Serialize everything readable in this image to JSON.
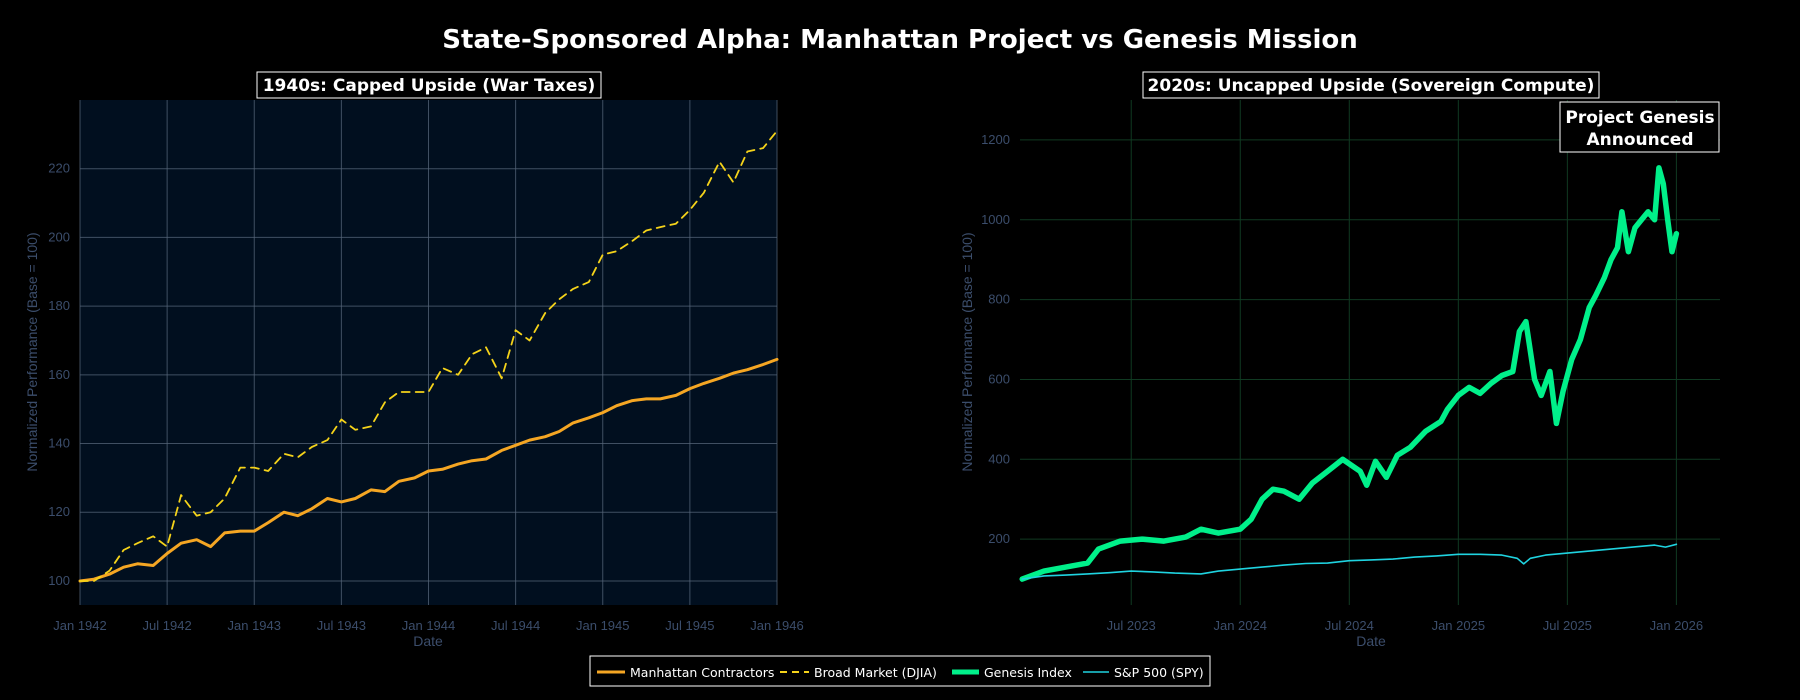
{
  "title": "State-Sponsored Alpha: Manhattan Project vs Genesis Mission",
  "colors": {
    "manhattan": "#f5a623",
    "djia": "#f5d31a",
    "genesis": "#00f08a",
    "spy": "#1fd3e0",
    "left_bg": "#010f1f",
    "tick": "#3b4d6b"
  },
  "chart_data": [
    {
      "type": "line",
      "title": "1940s: Capped Upside (War Taxes)",
      "xlabel": "Date",
      "ylabel": "Normalized Performance (Base = 100)",
      "x_range": [
        1942.0,
        1946.0
      ],
      "ylim": [
        93,
        240
      ],
      "x_ticks": [
        {
          "x": 1942.0,
          "label": "Jan 1942"
        },
        {
          "x": 1942.5,
          "label": "Jul 1942"
        },
        {
          "x": 1943.0,
          "label": "Jan 1943"
        },
        {
          "x": 1943.5,
          "label": "Jul 1943"
        },
        {
          "x": 1944.0,
          "label": "Jan 1944"
        },
        {
          "x": 1944.5,
          "label": "Jul 1944"
        },
        {
          "x": 1945.0,
          "label": "Jan 1945"
        },
        {
          "x": 1945.5,
          "label": "Jul 1945"
        },
        {
          "x": 1946.0,
          "label": "Jan 1946"
        }
      ],
      "y_ticks": [
        100,
        120,
        140,
        160,
        180,
        200,
        220
      ],
      "series": [
        {
          "name": "Manhattan Contractors",
          "style": "solid",
          "points": [
            [
              1942.0,
              100
            ],
            [
              1942.08,
              100.5
            ],
            [
              1942.17,
              102
            ],
            [
              1942.25,
              104
            ],
            [
              1942.33,
              105
            ],
            [
              1942.42,
              104.5
            ],
            [
              1942.5,
              108
            ],
            [
              1942.58,
              111
            ],
            [
              1942.67,
              112
            ],
            [
              1942.75,
              110
            ],
            [
              1942.83,
              114
            ],
            [
              1942.92,
              114.5
            ],
            [
              1943.0,
              114.5
            ],
            [
              1943.08,
              117
            ],
            [
              1943.17,
              120
            ],
            [
              1943.25,
              119
            ],
            [
              1943.33,
              121
            ],
            [
              1943.42,
              124
            ],
            [
              1943.5,
              123
            ],
            [
              1943.58,
              124
            ],
            [
              1943.67,
              126.5
            ],
            [
              1943.75,
              126
            ],
            [
              1943.83,
              129
            ],
            [
              1943.92,
              130
            ],
            [
              1944.0,
              132
            ],
            [
              1944.08,
              132.5
            ],
            [
              1944.17,
              134
            ],
            [
              1944.25,
              135
            ],
            [
              1944.33,
              135.5
            ],
            [
              1944.42,
              138
            ],
            [
              1944.5,
              139.5
            ],
            [
              1944.58,
              141
            ],
            [
              1944.67,
              142
            ],
            [
              1944.75,
              143.5
            ],
            [
              1944.83,
              146
            ],
            [
              1944.92,
              147.5
            ],
            [
              1945.0,
              149
            ],
            [
              1945.08,
              151
            ],
            [
              1945.17,
              152.5
            ],
            [
              1945.25,
              153
            ],
            [
              1945.33,
              153
            ],
            [
              1945.42,
              154
            ],
            [
              1945.5,
              156
            ],
            [
              1945.58,
              157.5
            ],
            [
              1945.67,
              159
            ],
            [
              1945.75,
              160.5
            ],
            [
              1945.83,
              161.5
            ],
            [
              1945.92,
              163
            ],
            [
              1946.0,
              164.5
            ]
          ]
        },
        {
          "name": "Broad Market (DJIA)",
          "style": "dash",
          "points": [
            [
              1942.0,
              100
            ],
            [
              1942.08,
              100
            ],
            [
              1942.17,
              103
            ],
            [
              1942.25,
              109
            ],
            [
              1942.33,
              111
            ],
            [
              1942.42,
              113
            ],
            [
              1942.5,
              110
            ],
            [
              1942.58,
              125
            ],
            [
              1942.67,
              119
            ],
            [
              1942.75,
              120
            ],
            [
              1942.83,
              124
            ],
            [
              1942.92,
              133
            ],
            [
              1943.0,
              133
            ],
            [
              1943.08,
              132
            ],
            [
              1943.17,
              137
            ],
            [
              1943.25,
              136
            ],
            [
              1943.33,
              139
            ],
            [
              1943.42,
              141
            ],
            [
              1943.5,
              147
            ],
            [
              1943.58,
              144
            ],
            [
              1943.67,
              145
            ],
            [
              1943.75,
              152
            ],
            [
              1943.83,
              155
            ],
            [
              1943.92,
              155
            ],
            [
              1944.0,
              155
            ],
            [
              1944.08,
              162
            ],
            [
              1944.17,
              160
            ],
            [
              1944.25,
              166
            ],
            [
              1944.33,
              168
            ],
            [
              1944.42,
              159
            ],
            [
              1944.5,
              173
            ],
            [
              1944.58,
              170
            ],
            [
              1944.67,
              178
            ],
            [
              1944.75,
              182
            ],
            [
              1944.83,
              185
            ],
            [
              1944.92,
              187
            ],
            [
              1945.0,
              195
            ],
            [
              1945.08,
              196
            ],
            [
              1945.17,
              199
            ],
            [
              1945.25,
              202
            ],
            [
              1945.33,
              203
            ],
            [
              1945.42,
              204
            ],
            [
              1945.5,
              208
            ],
            [
              1945.58,
              213
            ],
            [
              1945.67,
              222
            ],
            [
              1945.75,
              216
            ],
            [
              1945.83,
              225
            ],
            [
              1945.92,
              226
            ],
            [
              1946.0,
              231
            ]
          ]
        }
      ]
    },
    {
      "type": "line",
      "title": "2020s: Uncapped Upside (Sovereign Compute)",
      "xlabel": "Date",
      "ylabel": "Normalized Performance (Base = 100)",
      "x_range": [
        2022.99,
        2026.2
      ],
      "ylim": [
        35,
        1300
      ],
      "x_ticks": [
        {
          "x": 2023.5,
          "label": "Jul 2023"
        },
        {
          "x": 2024.0,
          "label": "Jan 2024"
        },
        {
          "x": 2024.5,
          "label": "Jul 2024"
        },
        {
          "x": 2025.0,
          "label": "Jan 2025"
        },
        {
          "x": 2025.5,
          "label": "Jul 2025"
        },
        {
          "x": 2026.0,
          "label": "Jan 2026"
        }
      ],
      "y_ticks": [
        200,
        400,
        600,
        800,
        1000,
        1200
      ],
      "annotation": {
        "line1": "Project Genesis",
        "line2": "Announced",
        "x": 2025.83,
        "y": 1140
      },
      "series": [
        {
          "name": "Genesis Index",
          "style": "thick",
          "points": [
            [
              2023.0,
              100
            ],
            [
              2023.1,
              120
            ],
            [
              2023.2,
              130
            ],
            [
              2023.3,
              140
            ],
            [
              2023.35,
              175
            ],
            [
              2023.45,
              195
            ],
            [
              2023.55,
              200
            ],
            [
              2023.65,
              195
            ],
            [
              2023.75,
              205
            ],
            [
              2023.82,
              225
            ],
            [
              2023.9,
              215
            ],
            [
              2024.0,
              225
            ],
            [
              2024.05,
              250
            ],
            [
              2024.1,
              300
            ],
            [
              2024.15,
              325
            ],
            [
              2024.2,
              320
            ],
            [
              2024.27,
              300
            ],
            [
              2024.33,
              340
            ],
            [
              2024.4,
              370
            ],
            [
              2024.47,
              400
            ],
            [
              2024.55,
              370
            ],
            [
              2024.58,
              335
            ],
            [
              2024.62,
              395
            ],
            [
              2024.67,
              355
            ],
            [
              2024.72,
              410
            ],
            [
              2024.78,
              430
            ],
            [
              2024.85,
              470
            ],
            [
              2024.92,
              495
            ],
            [
              2024.95,
              525
            ],
            [
              2025.0,
              560
            ],
            [
              2025.05,
              580
            ],
            [
              2025.1,
              565
            ],
            [
              2025.15,
              590
            ],
            [
              2025.2,
              610
            ],
            [
              2025.25,
              620
            ],
            [
              2025.28,
              720
            ],
            [
              2025.31,
              745
            ],
            [
              2025.35,
              600
            ],
            [
              2025.38,
              560
            ],
            [
              2025.42,
              620
            ],
            [
              2025.45,
              490
            ],
            [
              2025.48,
              570
            ],
            [
              2025.52,
              650
            ],
            [
              2025.56,
              700
            ],
            [
              2025.6,
              780
            ],
            [
              2025.63,
              810
            ],
            [
              2025.67,
              855
            ],
            [
              2025.7,
              900
            ],
            [
              2025.73,
              930
            ],
            [
              2025.75,
              1020
            ],
            [
              2025.78,
              920
            ],
            [
              2025.81,
              980
            ],
            [
              2025.84,
              1000
            ],
            [
              2025.87,
              1020
            ],
            [
              2025.9,
              1000
            ],
            [
              2025.92,
              1130
            ],
            [
              2025.94,
              1090
            ],
            [
              2025.96,
              1000
            ],
            [
              2025.98,
              920
            ],
            [
              2026.0,
              965
            ]
          ]
        },
        {
          "name": "S&P 500 (SPY)",
          "style": "thin",
          "points": [
            [
              2023.0,
              100
            ],
            [
              2023.1,
              108
            ],
            [
              2023.2,
              110
            ],
            [
              2023.3,
              113
            ],
            [
              2023.4,
              116
            ],
            [
              2023.5,
              120
            ],
            [
              2023.6,
              118
            ],
            [
              2023.7,
              115
            ],
            [
              2023.82,
              113
            ],
            [
              2023.9,
              120
            ],
            [
              2024.0,
              125
            ],
            [
              2024.1,
              130
            ],
            [
              2024.2,
              135
            ],
            [
              2024.3,
              139
            ],
            [
              2024.4,
              140
            ],
            [
              2024.5,
              146
            ],
            [
              2024.6,
              148
            ],
            [
              2024.7,
              150
            ],
            [
              2024.8,
              155
            ],
            [
              2024.9,
              158
            ],
            [
              2025.0,
              162
            ],
            [
              2025.1,
              162
            ],
            [
              2025.2,
              160
            ],
            [
              2025.27,
              152
            ],
            [
              2025.3,
              138
            ],
            [
              2025.33,
              152
            ],
            [
              2025.4,
              160
            ],
            [
              2025.5,
              165
            ],
            [
              2025.6,
              170
            ],
            [
              2025.7,
              175
            ],
            [
              2025.8,
              180
            ],
            [
              2025.9,
              185
            ],
            [
              2025.95,
              180
            ],
            [
              2026.0,
              187
            ]
          ]
        }
      ]
    }
  ],
  "legend": [
    {
      "label": "Manhattan Contractors"
    },
    {
      "label": "Broad Market (DJIA)"
    },
    {
      "label": "Genesis Index"
    },
    {
      "label": "S&P 500 (SPY)"
    }
  ]
}
